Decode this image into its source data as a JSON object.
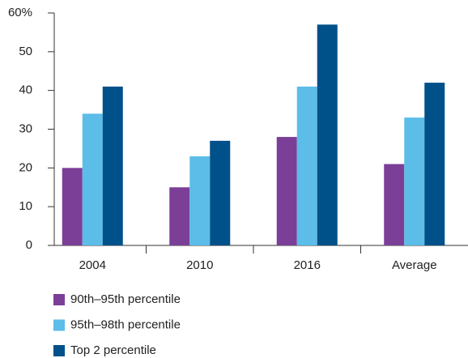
{
  "chart_data": {
    "type": "bar",
    "categories": [
      "2004",
      "2010",
      "2016",
      "Average"
    ],
    "series": [
      {
        "name": "90th–95th percentile",
        "color": "#7b3f98",
        "values": [
          20,
          15,
          28,
          21
        ]
      },
      {
        "name": "95th–98th percentile",
        "color": "#5bbde8",
        "values": [
          34,
          23,
          41,
          33
        ]
      },
      {
        "name": "Top 2 percentile",
        "color": "#00508a",
        "values": [
          41,
          27,
          57,
          42
        ]
      }
    ],
    "ylim": [
      0,
      60
    ],
    "yticks": [
      0,
      10,
      20,
      30,
      40,
      50,
      {
        "value": 60,
        "label": "60%"
      }
    ],
    "grid": false
  }
}
